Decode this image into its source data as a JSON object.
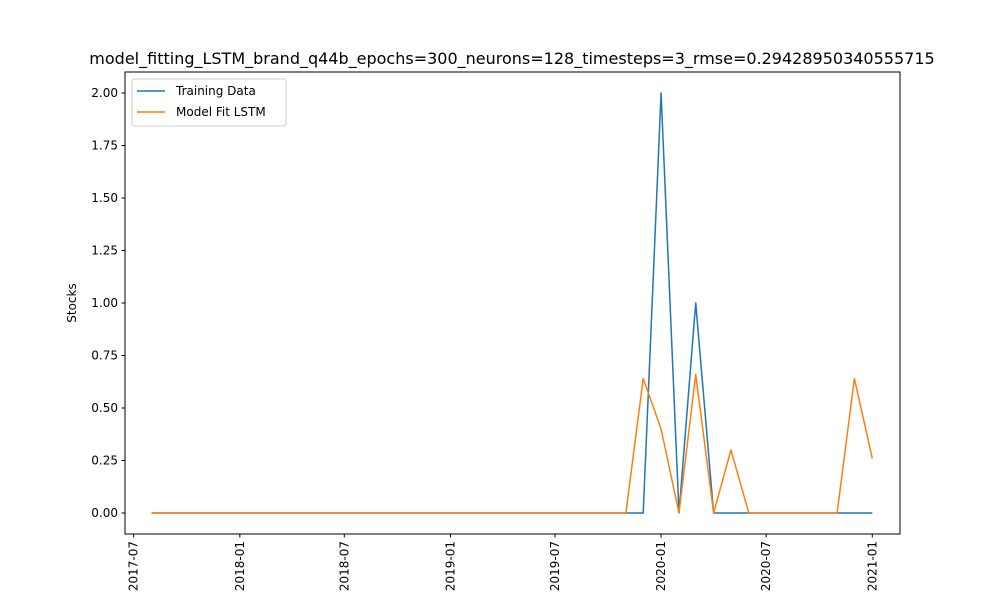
{
  "chart_data": {
    "type": "line",
    "title": "model_fitting_LSTM_brand_q44b_epochs=300_neurons=128_timesteps=3_rmse=0.29428950340555715",
    "xlabel": "",
    "ylabel": "Stocks",
    "x_ticks": [
      "2017-07",
      "2018-01",
      "2018-07",
      "2019-01",
      "2019-07",
      "2020-01",
      "2020-07",
      "2021-01"
    ],
    "y_ticks": [
      "0.00",
      "0.25",
      "0.50",
      "0.75",
      "1.00",
      "1.25",
      "1.50",
      "1.75",
      "2.00"
    ],
    "ylim": [
      -0.1,
      2.1
    ],
    "xlim": [
      "2017-06-16",
      "2021-02-18"
    ],
    "grid": false,
    "legend_position": "top-left",
    "series": [
      {
        "name": "Training Data",
        "color": "#1f77b4",
        "points": [
          [
            "2017-08-01",
            0
          ],
          [
            "2017-09-01",
            0
          ],
          [
            "2017-10-01",
            0
          ],
          [
            "2017-11-01",
            0
          ],
          [
            "2017-12-01",
            0
          ],
          [
            "2018-01-01",
            0
          ],
          [
            "2018-02-01",
            0
          ],
          [
            "2018-03-01",
            0
          ],
          [
            "2018-04-01",
            0
          ],
          [
            "2018-05-01",
            0
          ],
          [
            "2018-06-01",
            0
          ],
          [
            "2018-07-01",
            0
          ],
          [
            "2018-08-01",
            0
          ],
          [
            "2018-09-01",
            0
          ],
          [
            "2018-10-01",
            0
          ],
          [
            "2018-11-01",
            0
          ],
          [
            "2018-12-01",
            0
          ],
          [
            "2019-01-01",
            0
          ],
          [
            "2019-02-01",
            0
          ],
          [
            "2019-03-01",
            0
          ],
          [
            "2019-04-01",
            0
          ],
          [
            "2019-05-01",
            0
          ],
          [
            "2019-06-01",
            0
          ],
          [
            "2019-07-01",
            0
          ],
          [
            "2019-08-01",
            0
          ],
          [
            "2019-09-01",
            0
          ],
          [
            "2019-10-01",
            0
          ],
          [
            "2019-11-01",
            0
          ],
          [
            "2019-12-01",
            0
          ],
          [
            "2020-01-01",
            2
          ],
          [
            "2020-02-01",
            0
          ],
          [
            "2020-03-01",
            1
          ],
          [
            "2020-04-01",
            0
          ],
          [
            "2020-05-01",
            0
          ],
          [
            "2020-06-01",
            0
          ],
          [
            "2020-07-01",
            0
          ],
          [
            "2020-08-01",
            0
          ],
          [
            "2020-09-01",
            0
          ],
          [
            "2020-10-01",
            0
          ],
          [
            "2020-11-01",
            0
          ],
          [
            "2020-12-01",
            0
          ],
          [
            "2021-01-01",
            0
          ]
        ]
      },
      {
        "name": "Model Fit LSTM",
        "color": "#ff7f0e",
        "points": [
          [
            "2017-08-01",
            0
          ],
          [
            "2017-09-01",
            0
          ],
          [
            "2017-10-01",
            0
          ],
          [
            "2017-11-01",
            0
          ],
          [
            "2017-12-01",
            0
          ],
          [
            "2018-01-01",
            0
          ],
          [
            "2018-02-01",
            0
          ],
          [
            "2018-03-01",
            0
          ],
          [
            "2018-04-01",
            0
          ],
          [
            "2018-05-01",
            0
          ],
          [
            "2018-06-01",
            0
          ],
          [
            "2018-07-01",
            0
          ],
          [
            "2018-08-01",
            0
          ],
          [
            "2018-09-01",
            0
          ],
          [
            "2018-10-01",
            0
          ],
          [
            "2018-11-01",
            0
          ],
          [
            "2018-12-01",
            0
          ],
          [
            "2019-01-01",
            0
          ],
          [
            "2019-02-01",
            0
          ],
          [
            "2019-03-01",
            0
          ],
          [
            "2019-04-01",
            0
          ],
          [
            "2019-05-01",
            0
          ],
          [
            "2019-06-01",
            0
          ],
          [
            "2019-07-01",
            0
          ],
          [
            "2019-08-01",
            0
          ],
          [
            "2019-09-01",
            0
          ],
          [
            "2019-10-01",
            0
          ],
          [
            "2019-11-01",
            0
          ],
          [
            "2019-12-01",
            0.64
          ],
          [
            "2020-01-01",
            0.4
          ],
          [
            "2020-02-01",
            0
          ],
          [
            "2020-03-01",
            0.66
          ],
          [
            "2020-04-01",
            0
          ],
          [
            "2020-05-01",
            0.3
          ],
          [
            "2020-06-01",
            0
          ],
          [
            "2020-07-01",
            0
          ],
          [
            "2020-08-01",
            0
          ],
          [
            "2020-09-01",
            0
          ],
          [
            "2020-10-01",
            0
          ],
          [
            "2020-11-01",
            0
          ],
          [
            "2020-12-01",
            0.64
          ],
          [
            "2021-01-01",
            0.26
          ]
        ]
      }
    ]
  }
}
